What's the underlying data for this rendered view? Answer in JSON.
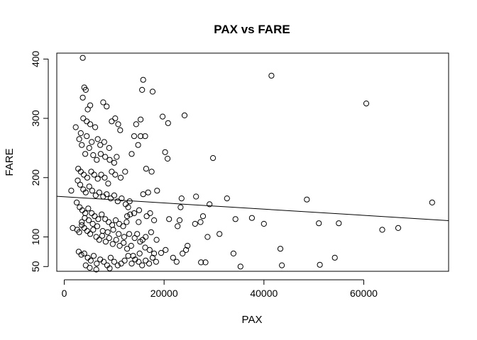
{
  "chart_data": {
    "type": "scatter",
    "title": "PAX vs FARE",
    "xlabel": "PAX",
    "ylabel": "FARE",
    "xlim": [
      -1500,
      77000
    ],
    "ylim": [
      42,
      410
    ],
    "x_ticks": [
      0,
      20000,
      40000,
      60000
    ],
    "y_ticks": [
      50,
      100,
      200,
      300,
      400
    ],
    "x_tick_labels": [
      "0",
      "20000",
      "40000",
      "60000"
    ],
    "y_tick_labels": [
      "50",
      "100",
      "200",
      "300",
      "400"
    ],
    "grid": false,
    "trendline": {
      "x": [
        -1500,
        77000
      ],
      "y": [
        168.5,
        127.5
      ]
    },
    "series": [
      {
        "marker": "open-circle",
        "points": [
          [
            3700,
            402
          ],
          [
            4000,
            352
          ],
          [
            4300,
            348
          ],
          [
            3700,
            335
          ],
          [
            5200,
            322
          ],
          [
            4700,
            315
          ],
          [
            7800,
            327
          ],
          [
            8500,
            320
          ],
          [
            3800,
            300
          ],
          [
            4500,
            295
          ],
          [
            5200,
            290
          ],
          [
            6200,
            285
          ],
          [
            3300,
            275
          ],
          [
            4500,
            270
          ],
          [
            5500,
            260
          ],
          [
            6700,
            265
          ],
          [
            7200,
            255
          ],
          [
            8000,
            260
          ],
          [
            9000,
            250
          ],
          [
            9500,
            295
          ],
          [
            10200,
            300
          ],
          [
            10800,
            290
          ],
          [
            11200,
            280
          ],
          [
            2300,
            285
          ],
          [
            3000,
            265
          ],
          [
            3500,
            255
          ],
          [
            4200,
            240
          ],
          [
            5000,
            250
          ],
          [
            5800,
            238
          ],
          [
            6500,
            230
          ],
          [
            7300,
            240
          ],
          [
            8200,
            235
          ],
          [
            9100,
            230
          ],
          [
            10000,
            225
          ],
          [
            10500,
            235
          ],
          [
            2800,
            215
          ],
          [
            3300,
            210
          ],
          [
            3900,
            205
          ],
          [
            4600,
            200
          ],
          [
            5400,
            210
          ],
          [
            6000,
            205
          ],
          [
            6700,
            198
          ],
          [
            7400,
            205
          ],
          [
            8100,
            200
          ],
          [
            8800,
            190
          ],
          [
            9500,
            210
          ],
          [
            10200,
            205
          ],
          [
            11300,
            200
          ],
          [
            12200,
            210
          ],
          [
            2700,
            195
          ],
          [
            3200,
            188
          ],
          [
            3800,
            180
          ],
          [
            4300,
            175
          ],
          [
            5000,
            185
          ],
          [
            5600,
            178
          ],
          [
            6300,
            170
          ],
          [
            7000,
            175
          ],
          [
            7800,
            168
          ],
          [
            8500,
            172
          ],
          [
            9300,
            165
          ],
          [
            10000,
            170
          ],
          [
            10700,
            160
          ],
          [
            11500,
            165
          ],
          [
            12300,
            155
          ],
          [
            13100,
            160
          ],
          [
            2500,
            158
          ],
          [
            3100,
            150
          ],
          [
            3600,
            145
          ],
          [
            4200,
            140
          ],
          [
            4800,
            148
          ],
          [
            5500,
            140
          ],
          [
            6100,
            135
          ],
          [
            6800,
            130
          ],
          [
            7500,
            138
          ],
          [
            8200,
            130
          ],
          [
            8900,
            125
          ],
          [
            9600,
            120
          ],
          [
            10300,
            128
          ],
          [
            11000,
            122
          ],
          [
            11800,
            118
          ],
          [
            12500,
            125
          ],
          [
            1400,
            178
          ],
          [
            1700,
            115
          ],
          [
            2600,
            112
          ],
          [
            3000,
            108
          ],
          [
            3500,
            120
          ],
          [
            4000,
            115
          ],
          [
            4600,
            110
          ],
          [
            5200,
            105
          ],
          [
            5800,
            112
          ],
          [
            6400,
            100
          ],
          [
            7000,
            95
          ],
          [
            7600,
            102
          ],
          [
            8300,
            92
          ],
          [
            9000,
            98
          ],
          [
            9700,
            88
          ],
          [
            10400,
            95
          ],
          [
            11100,
            85
          ],
          [
            11900,
            90
          ],
          [
            12600,
            80
          ],
          [
            13400,
            85
          ],
          [
            2900,
            75
          ],
          [
            3400,
            70
          ],
          [
            4000,
            72
          ],
          [
            4700,
            65
          ],
          [
            5300,
            60
          ],
          [
            5900,
            68
          ],
          [
            6500,
            55
          ],
          [
            7200,
            62
          ],
          [
            7900,
            58
          ],
          [
            8600,
            52
          ],
          [
            9300,
            65
          ],
          [
            10000,
            58
          ],
          [
            10700,
            52
          ],
          [
            11400,
            55
          ],
          [
            12100,
            60
          ],
          [
            12800,
            68
          ],
          [
            13500,
            55
          ],
          [
            14200,
            62
          ],
          [
            14900,
            58
          ],
          [
            15600,
            52
          ],
          [
            16300,
            60
          ],
          [
            17000,
            55
          ],
          [
            17700,
            65
          ],
          [
            18400,
            58
          ],
          [
            4300,
            52
          ],
          [
            5100,
            48
          ],
          [
            6400,
            45
          ],
          [
            9100,
            47
          ],
          [
            3500,
            125
          ],
          [
            4100,
            132
          ],
          [
            4900,
            128
          ],
          [
            5700,
            122
          ],
          [
            6600,
            118
          ],
          [
            7700,
            110
          ],
          [
            8700,
            108
          ],
          [
            9800,
            112
          ],
          [
            10900,
            105
          ],
          [
            12000,
            100
          ],
          [
            13000,
            105
          ],
          [
            14100,
            98
          ],
          [
            15200,
            92
          ],
          [
            16300,
            100
          ],
          [
            17400,
            108
          ],
          [
            18500,
            95
          ],
          [
            13500,
            240
          ],
          [
            14000,
            270
          ],
          [
            14400,
            290
          ],
          [
            15300,
            298
          ],
          [
            14800,
            255
          ],
          [
            15300,
            270
          ],
          [
            16200,
            270
          ],
          [
            15800,
            365
          ],
          [
            15600,
            348
          ],
          [
            17700,
            345
          ],
          [
            16400,
            215
          ],
          [
            17500,
            210
          ],
          [
            16800,
            175
          ],
          [
            15800,
            172
          ],
          [
            15000,
            145
          ],
          [
            14000,
            140
          ],
          [
            13200,
            138
          ],
          [
            12600,
            135
          ],
          [
            12800,
            150
          ],
          [
            14900,
            125
          ],
          [
            16500,
            135
          ],
          [
            17200,
            140
          ],
          [
            18000,
            128
          ],
          [
            18600,
            178
          ],
          [
            14600,
            105
          ],
          [
            15700,
            95
          ],
          [
            16200,
            82
          ],
          [
            17100,
            78
          ],
          [
            18000,
            72
          ],
          [
            15100,
            72
          ],
          [
            13800,
            68
          ],
          [
            19700,
            303
          ],
          [
            20800,
            292
          ],
          [
            20200,
            243
          ],
          [
            20700,
            232
          ],
          [
            19400,
            73
          ],
          [
            20300,
            78
          ],
          [
            21800,
            65
          ],
          [
            22500,
            58
          ],
          [
            21000,
            130
          ],
          [
            22700,
            118
          ],
          [
            23300,
            150
          ],
          [
            23500,
            165
          ],
          [
            23100,
            128
          ],
          [
            24100,
            305
          ],
          [
            24700,
            85
          ],
          [
            24400,
            78
          ],
          [
            23700,
            72
          ],
          [
            26400,
            168
          ],
          [
            26200,
            122
          ],
          [
            27300,
            125
          ],
          [
            27800,
            135
          ],
          [
            27400,
            57
          ],
          [
            28300,
            57
          ],
          [
            29100,
            155
          ],
          [
            28700,
            100
          ],
          [
            29800,
            233
          ],
          [
            31100,
            105
          ],
          [
            32600,
            165
          ],
          [
            33900,
            72
          ],
          [
            34300,
            130
          ],
          [
            35300,
            50
          ],
          [
            37600,
            132
          ],
          [
            40000,
            122
          ],
          [
            41500,
            372
          ],
          [
            43300,
            80
          ],
          [
            43600,
            52
          ],
          [
            48600,
            163
          ],
          [
            51000,
            123
          ],
          [
            51200,
            53
          ],
          [
            54200,
            65
          ],
          [
            55000,
            123
          ],
          [
            60500,
            325
          ],
          [
            63700,
            112
          ],
          [
            66900,
            115
          ],
          [
            73700,
            158
          ]
        ]
      }
    ]
  }
}
